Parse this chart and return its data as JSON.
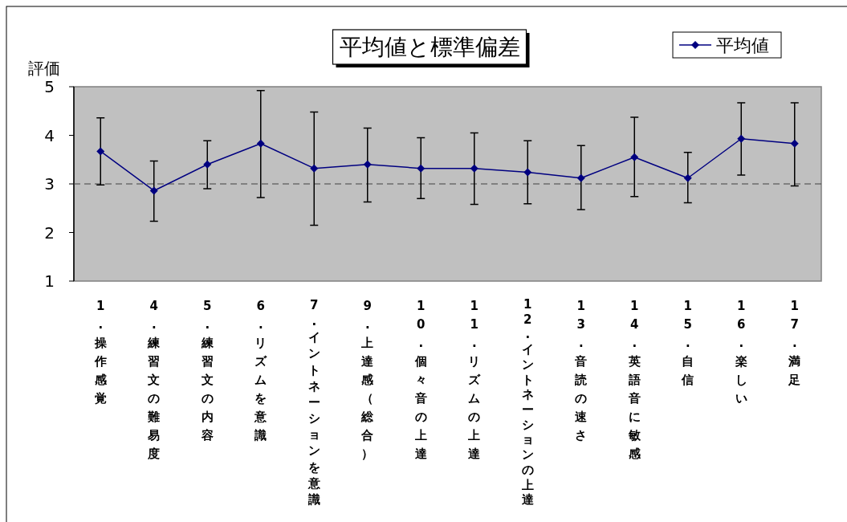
{
  "chart_data": {
    "type": "line",
    "title": "平均値と標準偏差",
    "ylabel": "評価",
    "categories": [
      "1.操作感覚",
      "4.練習文の難易度",
      "5.練習文の内容",
      "6.リズムを意識",
      "7.イントネーションを意識",
      "9.上達感（総合）",
      "10.個々音の上達",
      "11.リズムの上達",
      "12.イントネーションの上達",
      "13.音読の速さ",
      "14.英語音に敏感",
      "15.自信",
      "16.楽しい",
      "17.満足"
    ],
    "series": [
      {
        "name": "平均値",
        "color": "#000080",
        "values": [
          3.67,
          2.86,
          3.4,
          3.83,
          3.32,
          3.4,
          3.32,
          3.32,
          3.24,
          3.12,
          3.55,
          3.12,
          3.93,
          3.83
        ],
        "errors": [
          [
            2.98,
            4.36
          ],
          [
            2.23,
            3.47
          ],
          [
            2.9,
            3.89
          ],
          [
            2.72,
            4.92
          ],
          [
            2.15,
            4.48
          ],
          [
            2.63,
            4.15
          ],
          [
            2.7,
            3.95
          ],
          [
            2.58,
            4.05
          ],
          [
            2.59,
            3.89
          ],
          [
            2.47,
            3.79
          ],
          [
            2.74,
            4.37
          ],
          [
            2.61,
            3.65
          ],
          [
            3.18,
            4.67
          ],
          [
            2.96,
            4.67
          ]
        ]
      }
    ],
    "ylim": [
      1,
      5
    ],
    "yticks": [
      1,
      2,
      3,
      4,
      5
    ],
    "ref_lines": [
      {
        "axis": "y",
        "value": 3,
        "line_style": "dashed",
        "color": "#404040"
      }
    ],
    "legend": "top right",
    "marker": "diamond"
  }
}
